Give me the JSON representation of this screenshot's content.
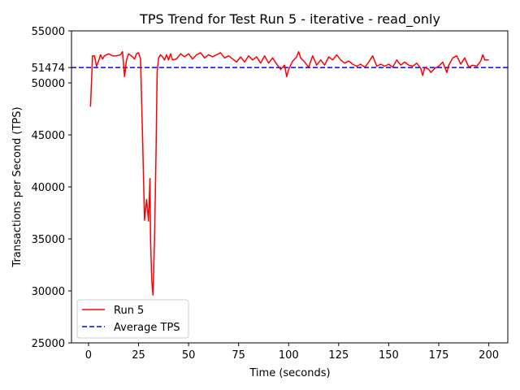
{
  "chart_data": {
    "type": "line",
    "title": "TPS Trend for Test Run 5 - iterative - read_only",
    "xlabel": "Time (seconds)",
    "ylabel": "Transactions per Second (TPS)",
    "xlim": [
      -8.5,
      209.5
    ],
    "ylim": [
      25000,
      55000
    ],
    "x_ticks": [
      0,
      25,
      50,
      75,
      100,
      125,
      150,
      175,
      200
    ],
    "x_tick_labels": [
      "0",
      "25",
      "50",
      "75",
      "100",
      "125",
      "150",
      "175",
      "200"
    ],
    "y_ticks": [
      25000,
      30000,
      35000,
      40000,
      45000,
      50000,
      51474,
      55000
    ],
    "y_tick_labels": [
      "25000",
      "30000",
      "35000",
      "40000",
      "45000",
      "50000",
      "51474",
      "55000"
    ],
    "grid": false,
    "legend_position": "lower-left",
    "series": [
      {
        "name": "Run 5",
        "color": "#ff0000",
        "style": "solid",
        "keypoints": [
          [
            1,
            47700
          ],
          [
            2,
            52600
          ],
          [
            3,
            52600
          ],
          [
            4,
            51600
          ],
          [
            5,
            52100
          ],
          [
            6,
            52700
          ],
          [
            7,
            52300
          ],
          [
            8,
            52600
          ],
          [
            9,
            52700
          ],
          [
            10,
            52800
          ],
          [
            12,
            52600
          ],
          [
            14,
            52600
          ],
          [
            16,
            52700
          ],
          [
            17,
            53000
          ],
          [
            18,
            50600
          ],
          [
            19,
            52200
          ],
          [
            20,
            52800
          ],
          [
            22,
            52500
          ],
          [
            23,
            52300
          ],
          [
            24,
            52800
          ],
          [
            25,
            52900
          ],
          [
            26,
            52300
          ],
          [
            27,
            45000
          ],
          [
            28,
            36800
          ],
          [
            29,
            38800
          ],
          [
            30,
            36700
          ],
          [
            30.7,
            40800
          ],
          [
            31,
            35000
          ],
          [
            31.6,
            31000
          ],
          [
            32.2,
            29600
          ],
          [
            33,
            35000
          ],
          [
            33.7,
            43000
          ],
          [
            34.3,
            51000
          ],
          [
            35,
            52400
          ],
          [
            36,
            52700
          ],
          [
            37,
            52500
          ],
          [
            38,
            52200
          ],
          [
            39,
            52700
          ],
          [
            40,
            52200
          ],
          [
            41,
            52800
          ],
          [
            42,
            52200
          ],
          [
            44,
            52300
          ],
          [
            46,
            52800
          ],
          [
            48,
            52500
          ],
          [
            50,
            52800
          ],
          [
            52,
            52300
          ],
          [
            54,
            52700
          ],
          [
            56,
            52900
          ],
          [
            58,
            52400
          ],
          [
            60,
            52700
          ],
          [
            62,
            52500
          ],
          [
            64,
            52700
          ],
          [
            66,
            52900
          ],
          [
            68,
            52400
          ],
          [
            70,
            52600
          ],
          [
            72,
            52300
          ],
          [
            74,
            52000
          ],
          [
            76,
            52500
          ],
          [
            78,
            52000
          ],
          [
            80,
            52600
          ],
          [
            82,
            52200
          ],
          [
            84,
            52500
          ],
          [
            86,
            51900
          ],
          [
            88,
            52600
          ],
          [
            90,
            51900
          ],
          [
            92,
            52400
          ],
          [
            94,
            51800
          ],
          [
            96,
            51300
          ],
          [
            98,
            51700
          ],
          [
            99,
            50600
          ],
          [
            100,
            51300
          ],
          [
            102,
            52100
          ],
          [
            104,
            52500
          ],
          [
            105,
            53000
          ],
          [
            106,
            52400
          ],
          [
            108,
            52000
          ],
          [
            110,
            51500
          ],
          [
            112,
            52600
          ],
          [
            114,
            51700
          ],
          [
            116,
            52200
          ],
          [
            118,
            51700
          ],
          [
            120,
            52500
          ],
          [
            122,
            52200
          ],
          [
            124,
            52700
          ],
          [
            126,
            52200
          ],
          [
            128,
            51900
          ],
          [
            130,
            52100
          ],
          [
            132,
            51800
          ],
          [
            134,
            51600
          ],
          [
            136,
            51800
          ],
          [
            138,
            51500
          ],
          [
            140,
            52000
          ],
          [
            142,
            52600
          ],
          [
            144,
            51600
          ],
          [
            146,
            51800
          ],
          [
            148,
            51600
          ],
          [
            150,
            51800
          ],
          [
            152,
            51500
          ],
          [
            154,
            52200
          ],
          [
            156,
            51700
          ],
          [
            158,
            52000
          ],
          [
            160,
            51700
          ],
          [
            162,
            51600
          ],
          [
            164,
            51900
          ],
          [
            166,
            51400
          ],
          [
            167,
            50700
          ],
          [
            168,
            51500
          ],
          [
            170,
            51300
          ],
          [
            171,
            51000
          ],
          [
            173,
            51400
          ],
          [
            175,
            51600
          ],
          [
            177,
            52000
          ],
          [
            179,
            51000
          ],
          [
            180,
            51700
          ],
          [
            182,
            52400
          ],
          [
            184,
            52600
          ],
          [
            186,
            51800
          ],
          [
            188,
            52400
          ],
          [
            190,
            51500
          ],
          [
            192,
            51700
          ],
          [
            194,
            51600
          ],
          [
            196,
            52100
          ],
          [
            197,
            52700
          ],
          [
            198,
            52200
          ],
          [
            200,
            52200
          ]
        ]
      },
      {
        "name": "Average TPS",
        "color": "#0000ff",
        "style": "dashed",
        "value": 51474
      }
    ]
  }
}
